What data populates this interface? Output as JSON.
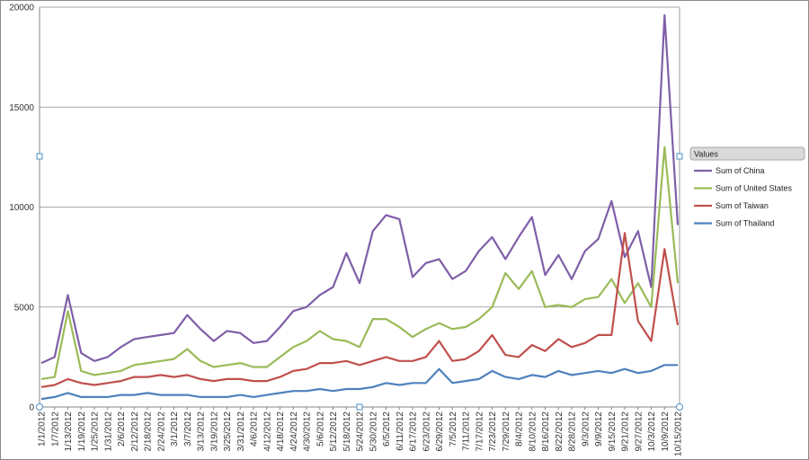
{
  "chart_data": {
    "type": "line",
    "ylim": [
      0,
      20000
    ],
    "yticks": [
      "0",
      "5000",
      "10000",
      "15000",
      "20000"
    ],
    "legend": {
      "title": "Values",
      "placement": "right"
    },
    "grid": true,
    "xticks": [
      "1/1/2012",
      "1/7/2012",
      "1/13/2012",
      "1/19/2012",
      "1/25/2012",
      "1/31/2012",
      "2/6/2012",
      "2/12/2012",
      "2/18/2012",
      "2/24/2012",
      "3/1/2012",
      "3/7/2012",
      "3/13/2012",
      "3/19/2012",
      "3/25/2012",
      "3/31/2012",
      "4/6/2012",
      "4/12/2012",
      "4/18/2012",
      "4/24/2012",
      "4/30/2012",
      "5/6/2012",
      "5/12/2012",
      "5/18/2012",
      "5/24/2012",
      "5/30/2012",
      "6/5/2012",
      "6/11/2012",
      "6/17/2012",
      "6/23/2012",
      "6/29/2012",
      "7/5/2012",
      "7/11/2012",
      "7/17/2012",
      "7/23/2012",
      "7/29/2012",
      "8/4/2012",
      "8/10/2012",
      "8/16/2012",
      "8/22/2012",
      "8/28/2012",
      "9/3/2012",
      "9/9/2012",
      "9/15/2012",
      "9/21/2012",
      "9/27/2012",
      "10/3/2012",
      "10/9/2012",
      "10/15/2012"
    ],
    "x": [
      "1/1/2012",
      "1/7/2012",
      "1/13/2012",
      "1/19/2012",
      "1/25/2012",
      "1/31/2012",
      "2/6/2012",
      "2/12/2012",
      "2/18/2012",
      "2/24/2012",
      "3/1/2012",
      "3/7/2012",
      "3/13/2012",
      "3/19/2012",
      "3/25/2012",
      "3/31/2012",
      "4/6/2012",
      "4/12/2012",
      "4/18/2012",
      "4/24/2012",
      "4/30/2012",
      "5/6/2012",
      "5/12/2012",
      "5/18/2012",
      "5/24/2012",
      "5/30/2012",
      "6/5/2012",
      "6/11/2012",
      "6/17/2012",
      "6/23/2012",
      "6/29/2012",
      "7/5/2012",
      "7/11/2012",
      "7/17/2012",
      "7/23/2012",
      "7/29/2012",
      "8/4/2012",
      "8/10/2012",
      "8/16/2012",
      "8/22/2012",
      "8/28/2012",
      "9/3/2012",
      "9/9/2012",
      "9/15/2012",
      "9/21/2012",
      "9/27/2012",
      "10/3/2012",
      "10/9/2012",
      "10/15/2012"
    ],
    "series": [
      {
        "name": "Sum of China",
        "color": "#7f5fa8",
        "values": [
          2200,
          2500,
          5600,
          2700,
          2300,
          2500,
          3000,
          3400,
          3500,
          3600,
          3700,
          4600,
          3900,
          3300,
          3800,
          3700,
          3200,
          3300,
          4000,
          4800,
          5000,
          5600,
          6000,
          7700,
          6200,
          8800,
          9600,
          9400,
          6500,
          7200,
          7400,
          6400,
          6800,
          7800,
          8500,
          7400,
          8500,
          9500,
          6600,
          7600,
          6400,
          7800,
          8400,
          10300,
          7500,
          8800,
          6000,
          19600,
          9100
        ]
      },
      {
        "name": "Sum of United States",
        "color": "#9bbb59",
        "values": [
          1400,
          1500,
          4800,
          1800,
          1600,
          1700,
          1800,
          2100,
          2200,
          2300,
          2400,
          2900,
          2300,
          2000,
          2100,
          2200,
          2000,
          2000,
          2500,
          3000,
          3300,
          3800,
          3400,
          3300,
          3000,
          4400,
          4400,
          4000,
          3500,
          3900,
          4200,
          3900,
          4000,
          4400,
          5000,
          6700,
          5900,
          6800,
          5000,
          5100,
          5000,
          5400,
          5500,
          6400,
          5200,
          6200,
          5000,
          13000,
          6200
        ]
      },
      {
        "name": "Sum of Taiwan",
        "color": "#c0504d",
        "values": [
          1000,
          1100,
          1400,
          1200,
          1100,
          1200,
          1300,
          1500,
          1500,
          1600,
          1500,
          1600,
          1400,
          1300,
          1400,
          1400,
          1300,
          1300,
          1500,
          1800,
          1900,
          2200,
          2200,
          2300,
          2100,
          2300,
          2500,
          2300,
          2300,
          2500,
          3300,
          2300,
          2400,
          2800,
          3600,
          2600,
          2500,
          3100,
          2800,
          3400,
          3000,
          3200,
          3600,
          3600,
          8700,
          4300,
          3300,
          7900,
          4100
        ]
      },
      {
        "name": "Sum of Thailand",
        "color": "#4f81bd",
        "values": [
          400,
          500,
          700,
          500,
          500,
          500,
          600,
          600,
          700,
          600,
          600,
          600,
          500,
          500,
          500,
          600,
          500,
          600,
          700,
          800,
          800,
          900,
          800,
          900,
          900,
          1000,
          1200,
          1100,
          1200,
          1200,
          1900,
          1200,
          1300,
          1400,
          1800,
          1500,
          1400,
          1600,
          1500,
          1800,
          1600,
          1700,
          1800,
          1700,
          1900,
          1700,
          1800,
          2100,
          2100
        ]
      }
    ]
  }
}
